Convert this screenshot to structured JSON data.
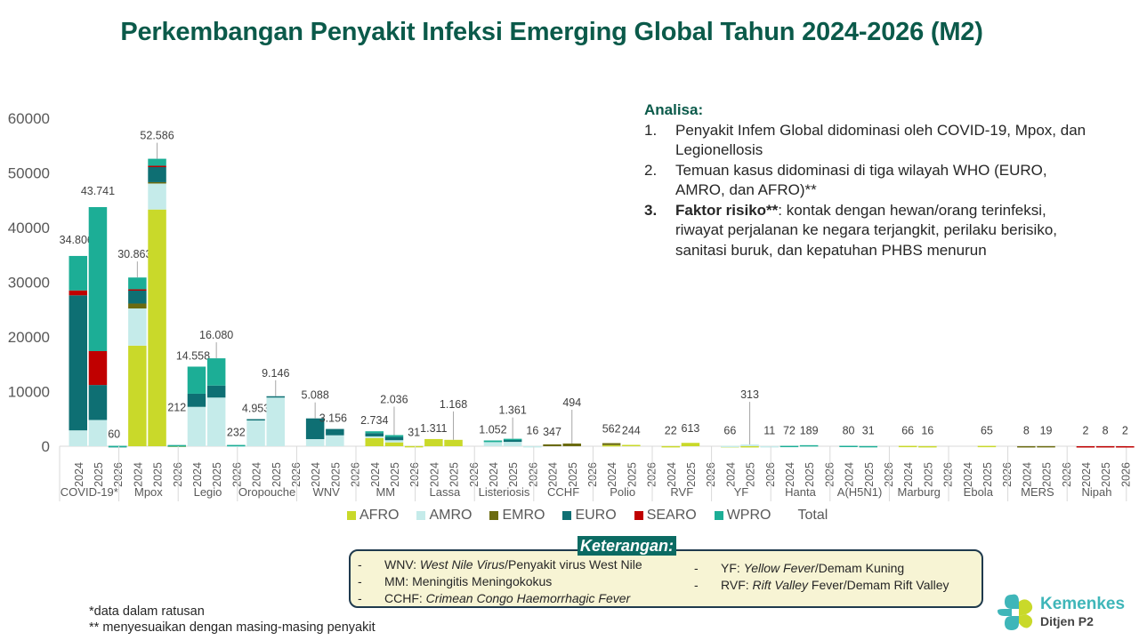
{
  "title": "Perkembangan Penyakit Infeksi Emerging Global Tahun 2024-2026 (M2)",
  "chart_data": {
    "type": "bar",
    "stacked": true,
    "title": "Perkembangan Penyakit Infeksi Emerging Global Tahun 2024-2026 (M2)",
    "xlabel": "",
    "ylabel": "",
    "ylim": [
      0,
      60000
    ],
    "yticks": [
      0,
      10000,
      20000,
      30000,
      40000,
      50000,
      60000
    ],
    "grid": false,
    "legend_position": "bottom",
    "years": [
      "2024",
      "2025",
      "2026"
    ],
    "regions": [
      {
        "name": "AFRO",
        "color": "#c9d92a"
      },
      {
        "name": "AMRO",
        "color": "#c5ebea"
      },
      {
        "name": "EMRO",
        "color": "#6b6b10"
      },
      {
        "name": "EURO",
        "color": "#0e6f73"
      },
      {
        "name": "SEARO",
        "color": "#c00000"
      },
      {
        "name": "WPRO",
        "color": "#1cae96"
      },
      {
        "name": "Total",
        "color": null
      }
    ],
    "categories": [
      {
        "name": "COVID-19*",
        "totals": [
          34806,
          43741,
          60
        ],
        "labels": [
          "34.806",
          "43.741",
          "60"
        ],
        "stacks": [
          {
            "AFRO": 0,
            "AMRO": 2900,
            "EMRO": 0,
            "EURO": 24700,
            "SEARO": 900,
            "WPRO": 6306
          },
          {
            "AFRO": 0,
            "AMRO": 4800,
            "EMRO": 0,
            "EURO": 6400,
            "SEARO": 6200,
            "WPRO": 26341
          },
          {
            "AFRO": 0,
            "AMRO": 20,
            "EMRO": 0,
            "EURO": 20,
            "SEARO": 0,
            "WPRO": 20
          }
        ]
      },
      {
        "name": "Mpox",
        "totals": [
          30863,
          52586,
          212
        ],
        "labels": [
          "30.863",
          "52.586",
          "212"
        ],
        "stacks": [
          {
            "AFRO": 18400,
            "AMRO": 6800,
            "EMRO": 900,
            "EURO": 2400,
            "SEARO": 200,
            "WPRO": 2163
          },
          {
            "AFRO": 43300,
            "AMRO": 4800,
            "EMRO": 200,
            "EURO": 2800,
            "SEARO": 200,
            "WPRO": 1286
          },
          {
            "AFRO": 100,
            "AMRO": 50,
            "EMRO": 0,
            "EURO": 30,
            "SEARO": 0,
            "WPRO": 32
          }
        ]
      },
      {
        "name": "Legio",
        "totals": [
          14558,
          16080,
          232
        ],
        "labels": [
          "14.558",
          "16.080",
          "232"
        ],
        "stacks": [
          {
            "AFRO": 0,
            "AMRO": 7200,
            "EMRO": 0,
            "EURO": 2400,
            "SEARO": 0,
            "WPRO": 4958
          },
          {
            "AFRO": 0,
            "AMRO": 8900,
            "EMRO": 0,
            "EURO": 2200,
            "SEARO": 0,
            "WPRO": 4980
          },
          {
            "AFRO": 0,
            "AMRO": 100,
            "EMRO": 0,
            "EURO": 0,
            "SEARO": 0,
            "WPRO": 132
          }
        ]
      },
      {
        "name": "Oropouche",
        "totals": [
          4953,
          9146,
          0
        ],
        "labels": [
          "4.953",
          "9.146",
          ""
        ],
        "stacks": [
          {
            "AFRO": 0,
            "AMRO": 4853,
            "EMRO": 0,
            "EURO": 100,
            "SEARO": 0,
            "WPRO": 0
          },
          {
            "AFRO": 0,
            "AMRO": 9046,
            "EMRO": 0,
            "EURO": 100,
            "SEARO": 0,
            "WPRO": 0
          },
          {
            "AFRO": 0,
            "AMRO": 0,
            "EMRO": 0,
            "EURO": 0,
            "SEARO": 0,
            "WPRO": 0
          }
        ]
      },
      {
        "name": "WNV",
        "totals": [
          5088,
          3156,
          0
        ],
        "labels": [
          "5.088",
          "3.156",
          ""
        ],
        "stacks": [
          {
            "AFRO": 0,
            "AMRO": 1300,
            "EMRO": 0,
            "EURO": 3788,
            "SEARO": 0,
            "WPRO": 0
          },
          {
            "AFRO": 0,
            "AMRO": 2000,
            "EMRO": 0,
            "EURO": 1156,
            "SEARO": 0,
            "WPRO": 0
          },
          {
            "AFRO": 0,
            "AMRO": 0,
            "EMRO": 0,
            "EURO": 0,
            "SEARO": 0,
            "WPRO": 0
          }
        ]
      },
      {
        "name": "MM",
        "totals": [
          2734,
          2036,
          31
        ],
        "labels": [
          "2.734",
          "2.036",
          "31"
        ],
        "stacks": [
          {
            "AFRO": 1500,
            "AMRO": 300,
            "EMRO": 0,
            "EURO": 600,
            "SEARO": 0,
            "WPRO": 334
          },
          {
            "AFRO": 700,
            "AMRO": 400,
            "EMRO": 0,
            "EURO": 600,
            "SEARO": 0,
            "WPRO": 336
          },
          {
            "AFRO": 31,
            "AMRO": 0,
            "EMRO": 0,
            "EURO": 0,
            "SEARO": 0,
            "WPRO": 0
          }
        ]
      },
      {
        "name": "Lassa",
        "totals": [
          1311,
          1168,
          0
        ],
        "labels": [
          "1.311",
          "1.168",
          ""
        ],
        "stacks": [
          {
            "AFRO": 1311,
            "AMRO": 0,
            "EMRO": 0,
            "EURO": 0,
            "SEARO": 0,
            "WPRO": 0
          },
          {
            "AFRO": 1168,
            "AMRO": 0,
            "EMRO": 0,
            "EURO": 0,
            "SEARO": 0,
            "WPRO": 0
          },
          {
            "AFRO": 0,
            "AMRO": 0,
            "EMRO": 0,
            "EURO": 0,
            "SEARO": 0,
            "WPRO": 0
          }
        ]
      },
      {
        "name": "Listeriosis",
        "totals": [
          1052,
          1361,
          16
        ],
        "labels": [
          "1.052",
          "1.361",
          "16"
        ],
        "stacks": [
          {
            "AFRO": 0,
            "AMRO": 750,
            "EMRO": 0,
            "EURO": 0,
            "SEARO": 0,
            "WPRO": 302
          },
          {
            "AFRO": 0,
            "AMRO": 800,
            "EMRO": 0,
            "EURO": 400,
            "SEARO": 0,
            "WPRO": 161
          },
          {
            "AFRO": 0,
            "AMRO": 16,
            "EMRO": 0,
            "EURO": 0,
            "SEARO": 0,
            "WPRO": 0
          }
        ]
      },
      {
        "name": "CCHF",
        "totals": [
          347,
          494,
          0
        ],
        "labels": [
          "347",
          "494",
          ""
        ],
        "stacks": [
          {
            "AFRO": 0,
            "AMRO": 0,
            "EMRO": 347,
            "EURO": 0,
            "SEARO": 0,
            "WPRO": 0
          },
          {
            "AFRO": 0,
            "AMRO": 0,
            "EMRO": 494,
            "EURO": 0,
            "SEARO": 0,
            "WPRO": 0
          },
          {
            "AFRO": 0,
            "AMRO": 0,
            "EMRO": 0,
            "EURO": 0,
            "SEARO": 0,
            "WPRO": 0
          }
        ]
      },
      {
        "name": "Polio",
        "totals": [
          562,
          244,
          0
        ],
        "labels": [
          "562",
          "244",
          ""
        ],
        "stacks": [
          {
            "AFRO": 200,
            "AMRO": 0,
            "EMRO": 362,
            "EURO": 0,
            "SEARO": 0,
            "WPRO": 0
          },
          {
            "AFRO": 244,
            "AMRO": 0,
            "EMRO": 0,
            "EURO": 0,
            "SEARO": 0,
            "WPRO": 0
          },
          {
            "AFRO": 0,
            "AMRO": 0,
            "EMRO": 0,
            "EURO": 0,
            "SEARO": 0,
            "WPRO": 0
          }
        ]
      },
      {
        "name": "RVF",
        "totals": [
          22,
          613,
          0
        ],
        "labels": [
          "22",
          "613",
          ""
        ],
        "stacks": [
          {
            "AFRO": 22,
            "AMRO": 0,
            "EMRO": 0,
            "EURO": 0,
            "SEARO": 0,
            "WPRO": 0
          },
          {
            "AFRO": 613,
            "AMRO": 0,
            "EMRO": 0,
            "EURO": 0,
            "SEARO": 0,
            "WPRO": 0
          },
          {
            "AFRO": 0,
            "AMRO": 0,
            "EMRO": 0,
            "EURO": 0,
            "SEARO": 0,
            "WPRO": 0
          }
        ]
      },
      {
        "name": "YF",
        "totals": [
          66,
          313,
          11
        ],
        "labels": [
          "66",
          "313",
          "11"
        ],
        "stacks": [
          {
            "AFRO": 20,
            "AMRO": 46,
            "EMRO": 0,
            "EURO": 0,
            "SEARO": 0,
            "WPRO": 0
          },
          {
            "AFRO": 13,
            "AMRO": 300,
            "EMRO": 0,
            "EURO": 0,
            "SEARO": 0,
            "WPRO": 0
          },
          {
            "AFRO": 0,
            "AMRO": 11,
            "EMRO": 0,
            "EURO": 0,
            "SEARO": 0,
            "WPRO": 0
          }
        ]
      },
      {
        "name": "Hanta",
        "totals": [
          72,
          189,
          0
        ],
        "labels": [
          "72",
          "189",
          ""
        ],
        "stacks": [
          {
            "AFRO": 0,
            "AMRO": 0,
            "EMRO": 0,
            "EURO": 0,
            "SEARO": 0,
            "WPRO": 72
          },
          {
            "AFRO": 0,
            "AMRO": 0,
            "EMRO": 0,
            "EURO": 0,
            "SEARO": 0,
            "WPRO": 189
          },
          {
            "AFRO": 0,
            "AMRO": 0,
            "EMRO": 0,
            "EURO": 0,
            "SEARO": 0,
            "WPRO": 0
          }
        ]
      },
      {
        "name": "A(H5N1)",
        "totals": [
          80,
          31,
          0
        ],
        "labels": [
          "80",
          "31",
          ""
        ],
        "stacks": [
          {
            "AFRO": 0,
            "AMRO": 0,
            "EMRO": 0,
            "EURO": 0,
            "SEARO": 0,
            "WPRO": 80
          },
          {
            "AFRO": 0,
            "AMRO": 0,
            "EMRO": 0,
            "EURO": 0,
            "SEARO": 0,
            "WPRO": 31
          },
          {
            "AFRO": 0,
            "AMRO": 0,
            "EMRO": 0,
            "EURO": 0,
            "SEARO": 0,
            "WPRO": 0
          }
        ]
      },
      {
        "name": "Marburg",
        "totals": [
          66,
          16,
          0
        ],
        "labels": [
          "66",
          "16",
          ""
        ],
        "stacks": [
          {
            "AFRO": 66,
            "AMRO": 0,
            "EMRO": 0,
            "EURO": 0,
            "SEARO": 0,
            "WPRO": 0
          },
          {
            "AFRO": 16,
            "AMRO": 0,
            "EMRO": 0,
            "EURO": 0,
            "SEARO": 0,
            "WPRO": 0
          },
          {
            "AFRO": 0,
            "AMRO": 0,
            "EMRO": 0,
            "EURO": 0,
            "SEARO": 0,
            "WPRO": 0
          }
        ]
      },
      {
        "name": "Ebola",
        "totals": [
          0,
          65,
          0
        ],
        "labels": [
          "",
          "65",
          ""
        ],
        "stacks": [
          {
            "AFRO": 0,
            "AMRO": 0,
            "EMRO": 0,
            "EURO": 0,
            "SEARO": 0,
            "WPRO": 0
          },
          {
            "AFRO": 65,
            "AMRO": 0,
            "EMRO": 0,
            "EURO": 0,
            "SEARO": 0,
            "WPRO": 0
          },
          {
            "AFRO": 0,
            "AMRO": 0,
            "EMRO": 0,
            "EURO": 0,
            "SEARO": 0,
            "WPRO": 0
          }
        ]
      },
      {
        "name": "MERS",
        "totals": [
          8,
          19,
          0
        ],
        "labels": [
          "8",
          "19",
          ""
        ],
        "stacks": [
          {
            "AFRO": 0,
            "AMRO": 0,
            "EMRO": 8,
            "EURO": 0,
            "SEARO": 0,
            "WPRO": 0
          },
          {
            "AFRO": 0,
            "AMRO": 0,
            "EMRO": 19,
            "EURO": 0,
            "SEARO": 0,
            "WPRO": 0
          },
          {
            "AFRO": 0,
            "AMRO": 0,
            "EMRO": 0,
            "EURO": 0,
            "SEARO": 0,
            "WPRO": 0
          }
        ]
      },
      {
        "name": "Nipah",
        "totals": [
          2,
          8,
          2
        ],
        "labels": [
          "2",
          "8",
          "2"
        ],
        "stacks": [
          {
            "AFRO": 0,
            "AMRO": 0,
            "EMRO": 0,
            "EURO": 0,
            "SEARO": 2,
            "WPRO": 0
          },
          {
            "AFRO": 0,
            "AMRO": 0,
            "EMRO": 0,
            "EURO": 0,
            "SEARO": 8,
            "WPRO": 0
          },
          {
            "AFRO": 0,
            "AMRO": 0,
            "EMRO": 0,
            "EURO": 0,
            "SEARO": 2,
            "WPRO": 0
          }
        ]
      }
    ]
  },
  "legend": [
    {
      "label": "AFRO",
      "color": "#c9d92a"
    },
    {
      "label": "AMRO",
      "color": "#c5ebea"
    },
    {
      "label": "EMRO",
      "color": "#6b6b10"
    },
    {
      "label": "EURO",
      "color": "#0e6f73"
    },
    {
      "label": "SEARO",
      "color": "#c00000"
    },
    {
      "label": "WPRO",
      "color": "#1cae96"
    },
    {
      "label": "Total",
      "color": ""
    }
  ],
  "analysis": {
    "heading": "Analisa:",
    "items": [
      {
        "num": "1.",
        "bold": "",
        "text": "Penyakit Infem Global didominasi oleh COVID-19, Mpox, dan Legionellosis"
      },
      {
        "num": "2.",
        "bold": "",
        "text": "Temuan kasus didominasi di tiga wilayah WHO (EURO, AMRO, dan AFRO)**"
      },
      {
        "num": "3.",
        "bold": "Faktor risiko**",
        "text": ": kontak dengan hewan/orang terinfeksi, riwayat perjalanan ke negara terjangkit, perilaku berisiko, sanitasi buruk, dan kepatuhan PHBS menurun"
      }
    ]
  },
  "keterangan": {
    "title": "Keterangan:",
    "left": [
      {
        "abbr": "WNV: ",
        "italic": "West Nile Virus",
        "rest": "/Penyakit virus West Nile"
      },
      {
        "abbr": "MM: ",
        "italic": "",
        "rest": "Meningitis Meningokokus"
      },
      {
        "abbr": "CCHF: ",
        "italic": "Crimean Congo Haemorrhagic Fever",
        "rest": ""
      }
    ],
    "right": [
      {
        "abbr": "YF: ",
        "italic": "Yellow Fever",
        "rest": "/Demam Kuning"
      },
      {
        "abbr": "RVF: ",
        "italic": "Rift Valley",
        "rest": " Fever/Demam Rift Valley"
      }
    ],
    "dash": "-"
  },
  "footnotes": {
    "line1": "*data dalam ratusan",
    "line2": "** menyesuaikan dengan masing-masing penyakit"
  },
  "logo": {
    "name": "Kemenkes",
    "sub": "Ditjen P2"
  }
}
